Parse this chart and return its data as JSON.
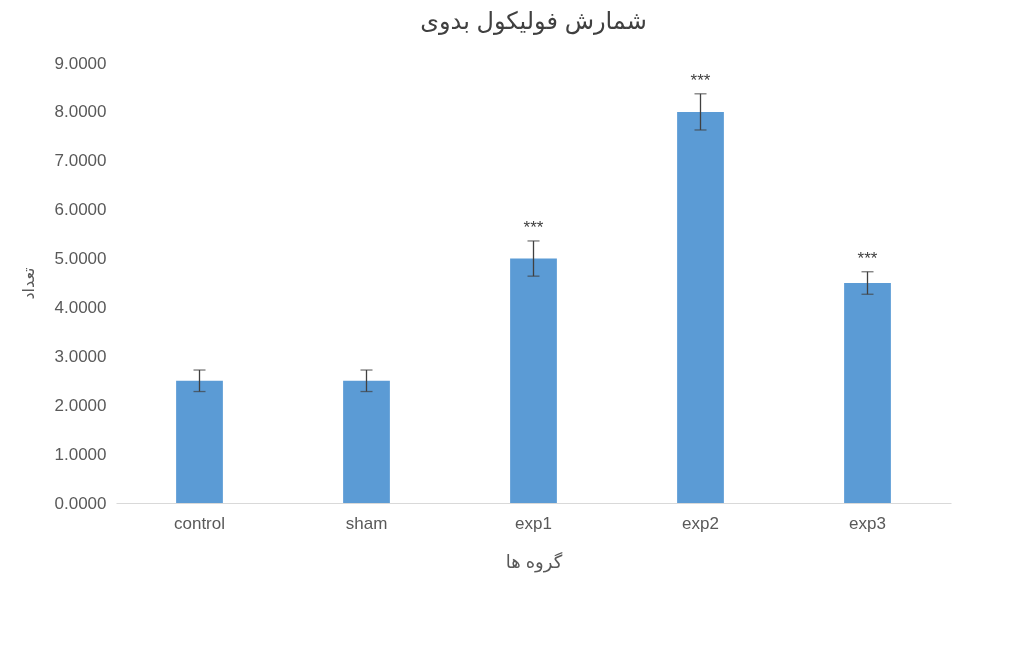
{
  "chart_data": {
    "type": "bar",
    "title": "شمارش فولیکول بدوی",
    "xlabel": "گروه ها",
    "ylabel": "تعداد",
    "categories": [
      "control",
      "sham",
      "exp1",
      "exp2",
      "exp3"
    ],
    "values": [
      2.5,
      2.5,
      5.0,
      8.0,
      4.5
    ],
    "errors": [
      0.22,
      0.22,
      0.36,
      0.37,
      0.23
    ],
    "color": "#5b9bd5",
    "ylim": [
      0,
      9
    ],
    "yticks": [
      {
        "value": 0,
        "label": "0.0000"
      },
      {
        "value": 1,
        "label": "1.0000"
      },
      {
        "value": 2,
        "label": "2.0000"
      },
      {
        "value": 3,
        "label": "3.0000"
      },
      {
        "value": 4,
        "label": "4.0000"
      },
      {
        "value": 5,
        "label": "5.0000"
      },
      {
        "value": 6,
        "label": "6.0000"
      },
      {
        "value": 7,
        "label": "7.0000"
      },
      {
        "value": 8,
        "label": "8.0000"
      },
      {
        "value": 9,
        "label": "9.0000"
      }
    ],
    "annotations": [
      {
        "text": "***",
        "x": "exp1",
        "y": 5.36
      },
      {
        "text": "***",
        "x": "exp2",
        "y": 8.37
      },
      {
        "text": "***",
        "x": "exp3",
        "y": 4.73
      }
    ],
    "grid": false
  }
}
